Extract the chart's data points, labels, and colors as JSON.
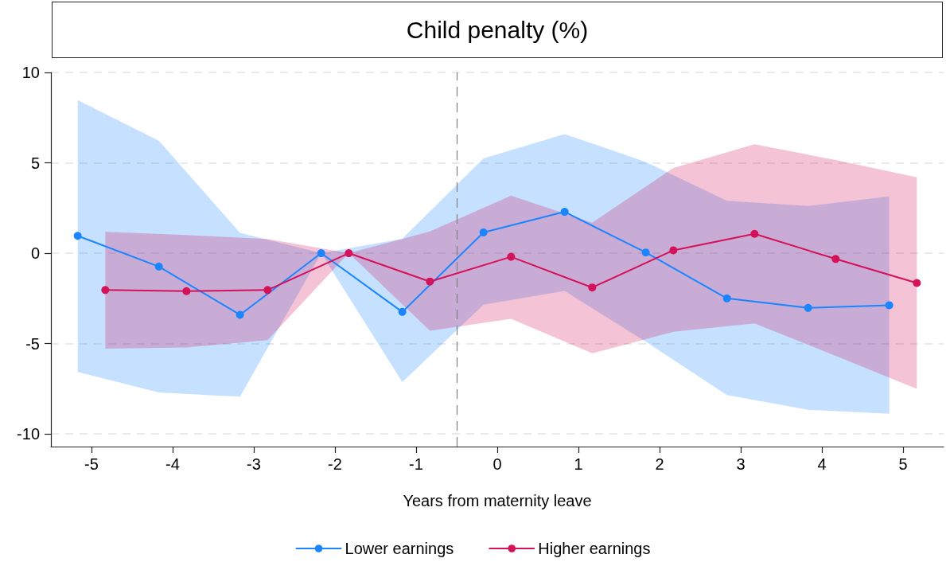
{
  "chart_data": {
    "type": "line",
    "title": "Child penalty (%)",
    "xlabel": "Years from maternity leave",
    "xlim": [
      -5.5,
      5.5
    ],
    "xticks": [
      -5,
      -4,
      -3,
      -2,
      -1,
      0,
      1,
      2,
      3,
      4,
      5
    ],
    "ylim": [
      -10.7,
      10
    ],
    "yticks": [
      -10,
      -5,
      0,
      5,
      10
    ],
    "grid": "y",
    "legend": "bottom",
    "marker": "circle",
    "line_style": "solid",
    "ref_lines": [
      {
        "axis": "x",
        "value": -0.5,
        "color": "#808080",
        "line_style": "dashed"
      }
    ],
    "series": [
      {
        "name": "Lower earnings",
        "color": "#1a85ff",
        "x": [
          -5.17,
          -4.17,
          -3.17,
          -2.17,
          -1.17,
          -0.17,
          0.83,
          1.83,
          2.83,
          3.83,
          4.83
        ],
        "values": [
          0.96,
          -0.74,
          -3.41,
          0,
          -3.25,
          1.15,
          2.29,
          0.04,
          -2.5,
          -3.03,
          -2.88
        ],
        "lower": [
          -6.57,
          -7.71,
          -7.94,
          0,
          -7.13,
          -2.85,
          -2.09,
          -4.9,
          -7.85,
          -8.66,
          -8.88
        ],
        "upper": [
          8.47,
          6.22,
          1.12,
          0,
          0.8,
          5.24,
          6.59,
          5.05,
          2.9,
          2.61,
          3.14
        ]
      },
      {
        "name": "Higher earnings",
        "color": "#d41159",
        "x": [
          -4.83,
          -3.83,
          -2.83,
          -1.83,
          -0.83,
          0.17,
          1.17,
          2.17,
          3.17,
          4.17,
          5.17
        ],
        "values": [
          -2.04,
          -2.1,
          -2.04,
          0,
          -1.57,
          -0.2,
          -1.9,
          0.16,
          1.07,
          -0.32,
          -1.65
        ],
        "lower": [
          -5.28,
          -5.22,
          -4.81,
          0,
          -4.29,
          -3.63,
          -5.54,
          -4.35,
          -3.88,
          -5.68,
          -7.51
        ],
        "upper": [
          1.18,
          1.0,
          0.78,
          0,
          1.2,
          3.18,
          1.69,
          4.71,
          6.03,
          5.15,
          4.2
        ]
      }
    ]
  }
}
